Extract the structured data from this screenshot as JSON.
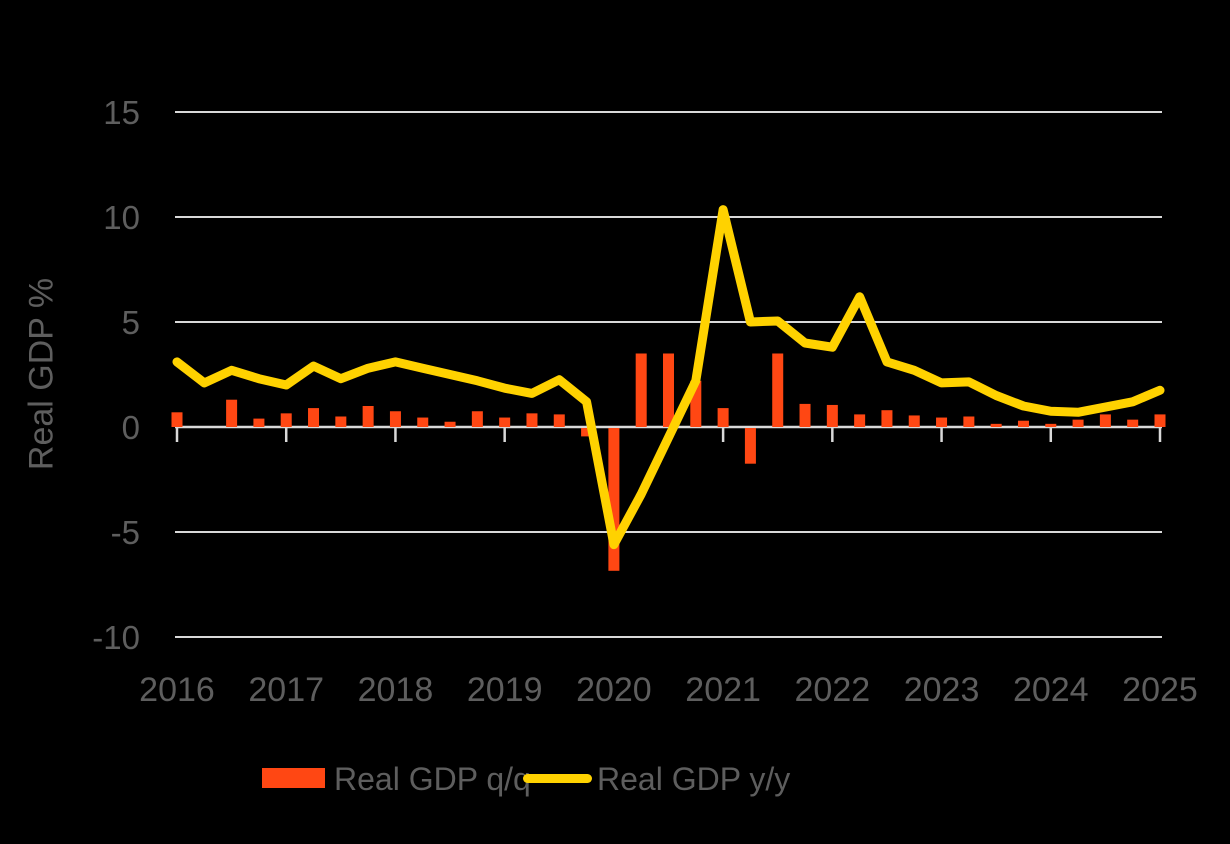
{
  "canvas": {
    "background": "#000000",
    "text_color": "#5e5e5e",
    "gridline_color": "#d9d9d9"
  },
  "y_axis": {
    "title": "Real GDP %",
    "tick_labels": [
      "15",
      "10",
      "5",
      "0",
      "-5",
      "-10"
    ],
    "tick_values": [
      15,
      10,
      5,
      0,
      -5,
      -10
    ]
  },
  "x_axis": {
    "year_labels": [
      "2016",
      "2017",
      "2018",
      "2019",
      "2020",
      "2021",
      "2022",
      "2023",
      "2024",
      "2025"
    ]
  },
  "legend": {
    "items": [
      {
        "label": "Real GDP q/q",
        "type": "bar",
        "color": "#FF4713"
      },
      {
        "label": "Real GDP y/y",
        "type": "line",
        "color": "#FFD200"
      }
    ]
  },
  "chart_data": {
    "type": "combo (bar + line)",
    "title": "",
    "xlabel": "",
    "ylabel": "Real GDP %",
    "ylim": [
      -10,
      15
    ],
    "y_gridlines": [
      15,
      10,
      5,
      0,
      -5,
      -10
    ],
    "grid": "horizontal",
    "legend_position": "bottom",
    "x": [
      "2016 Q1",
      "2016 Q2",
      "2016 Q3",
      "2016 Q4",
      "2017 Q1",
      "2017 Q2",
      "2017 Q3",
      "2017 Q4",
      "2018 Q1",
      "2018 Q2",
      "2018 Q3",
      "2018 Q4",
      "2019 Q1",
      "2019 Q2",
      "2019 Q3",
      "2019 Q4",
      "2020 Q1",
      "2020 Q2",
      "2020 Q3",
      "2020 Q4",
      "2021 Q1",
      "2021 Q2",
      "2021 Q3",
      "2021 Q4",
      "2022 Q1",
      "2022 Q2",
      "2022 Q3",
      "2022 Q4",
      "2023 Q1",
      "2023 Q2",
      "2023 Q3",
      "2023 Q4",
      "2024 Q1",
      "2024 Q2",
      "2024 Q3",
      "2024 Q4",
      "2025 Q1"
    ],
    "xtick_labels": [
      "2016",
      "2017",
      "2018",
      "2019",
      "2020",
      "2021",
      "2022",
      "2023",
      "2024",
      "2025"
    ],
    "series": [
      {
        "name": "Real GDP q/q",
        "type": "bar",
        "color": "#FF4713",
        "values": [
          0.7,
          0.0,
          1.3,
          0.4,
          0.65,
          0.9,
          0.5,
          1.0,
          0.75,
          0.45,
          0.25,
          0.75,
          0.45,
          0.65,
          0.6,
          -0.4,
          -6.8,
          3.5,
          3.5,
          2.2,
          0.9,
          -1.7,
          3.5,
          1.1,
          1.05,
          0.6,
          0.8,
          0.55,
          0.45,
          0.5,
          0.15,
          0.3,
          0.15,
          0.35,
          0.6,
          0.35,
          0.6
        ]
      },
      {
        "name": "Real GDP y/y",
        "type": "line",
        "color": "#FFD200",
        "values": [
          3.1,
          2.1,
          2.7,
          2.3,
          2.0,
          2.9,
          2.3,
          2.8,
          3.1,
          2.8,
          2.5,
          2.2,
          1.85,
          1.6,
          2.25,
          1.2,
          -5.6,
          -3.2,
          -0.5,
          2.2,
          10.35,
          5.0,
          5.05,
          4.0,
          3.8,
          6.2,
          3.1,
          2.7,
          2.1,
          2.15,
          1.5,
          1.0,
          0.75,
          0.7,
          0.95,
          1.2,
          1.75
        ]
      }
    ]
  }
}
